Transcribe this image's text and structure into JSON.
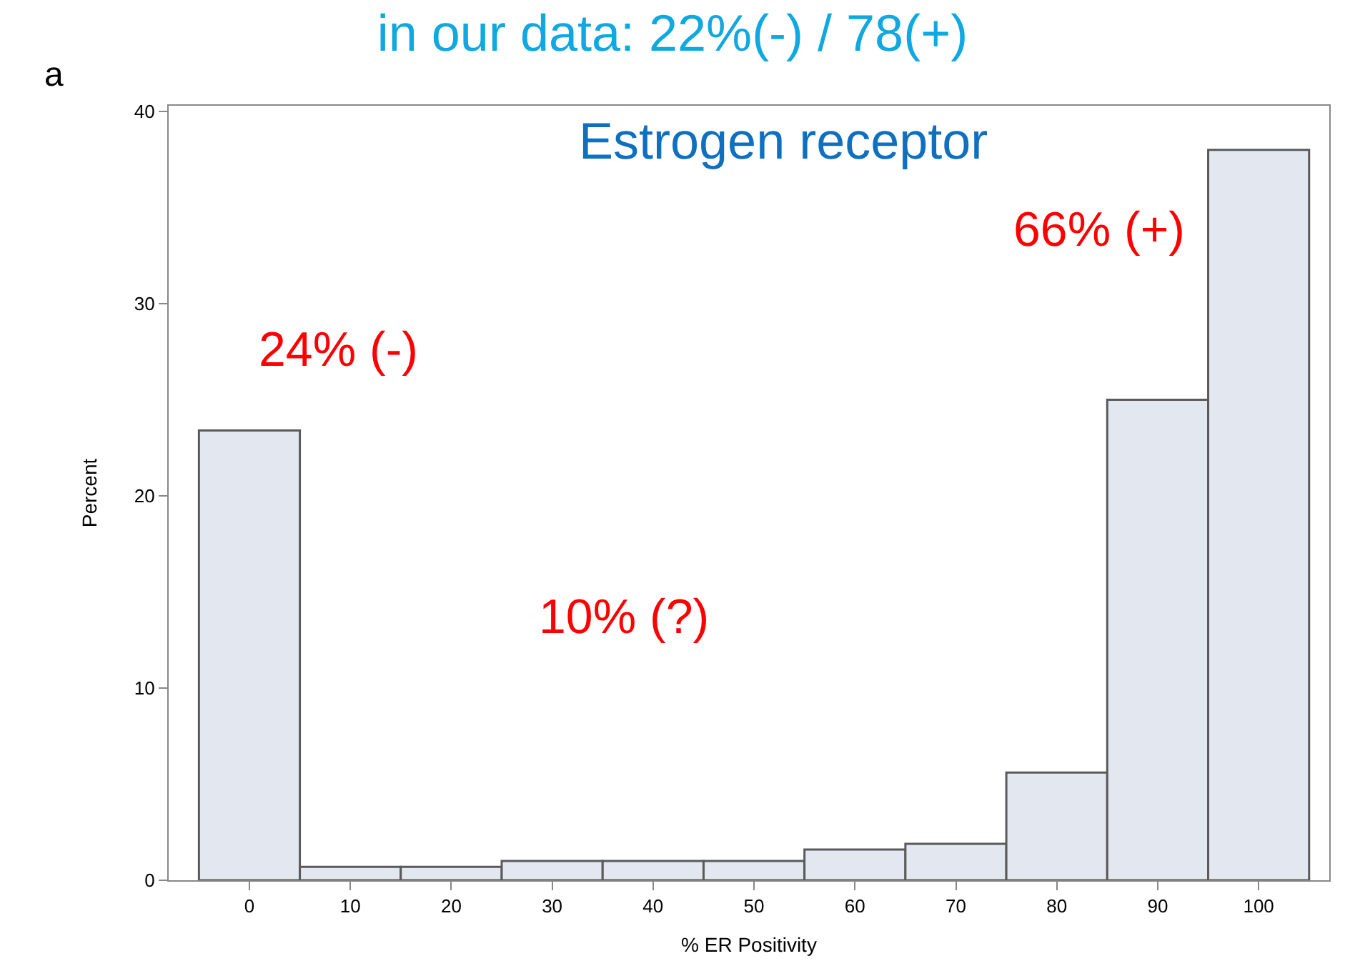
{
  "chart_data": {
    "type": "histogram",
    "title": "in our data: 22%(-) / 78(+)",
    "xlabel": "% ER Positivity",
    "ylabel": "Percent",
    "bins": [
      -5,
      5,
      15,
      25,
      35,
      45,
      55,
      65,
      75,
      85,
      95,
      105
    ],
    "values": [
      23.4,
      0.7,
      0.7,
      1.0,
      1.0,
      1.0,
      1.6,
      1.9,
      5.6,
      25.0,
      38.0
    ],
    "color": "#e3e7f0",
    "xlim": [
      -8,
      107
    ],
    "xticks": [
      0,
      10,
      20,
      30,
      40,
      50,
      60,
      70,
      80,
      90,
      100
    ],
    "ylim": [
      0,
      40.3
    ],
    "yticks": [
      0,
      10,
      20,
      30,
      40
    ],
    "annotations": [
      "a",
      "Estrogen receptor",
      "24% (-)",
      "10% (?)",
      "66% (+)"
    ]
  }
}
